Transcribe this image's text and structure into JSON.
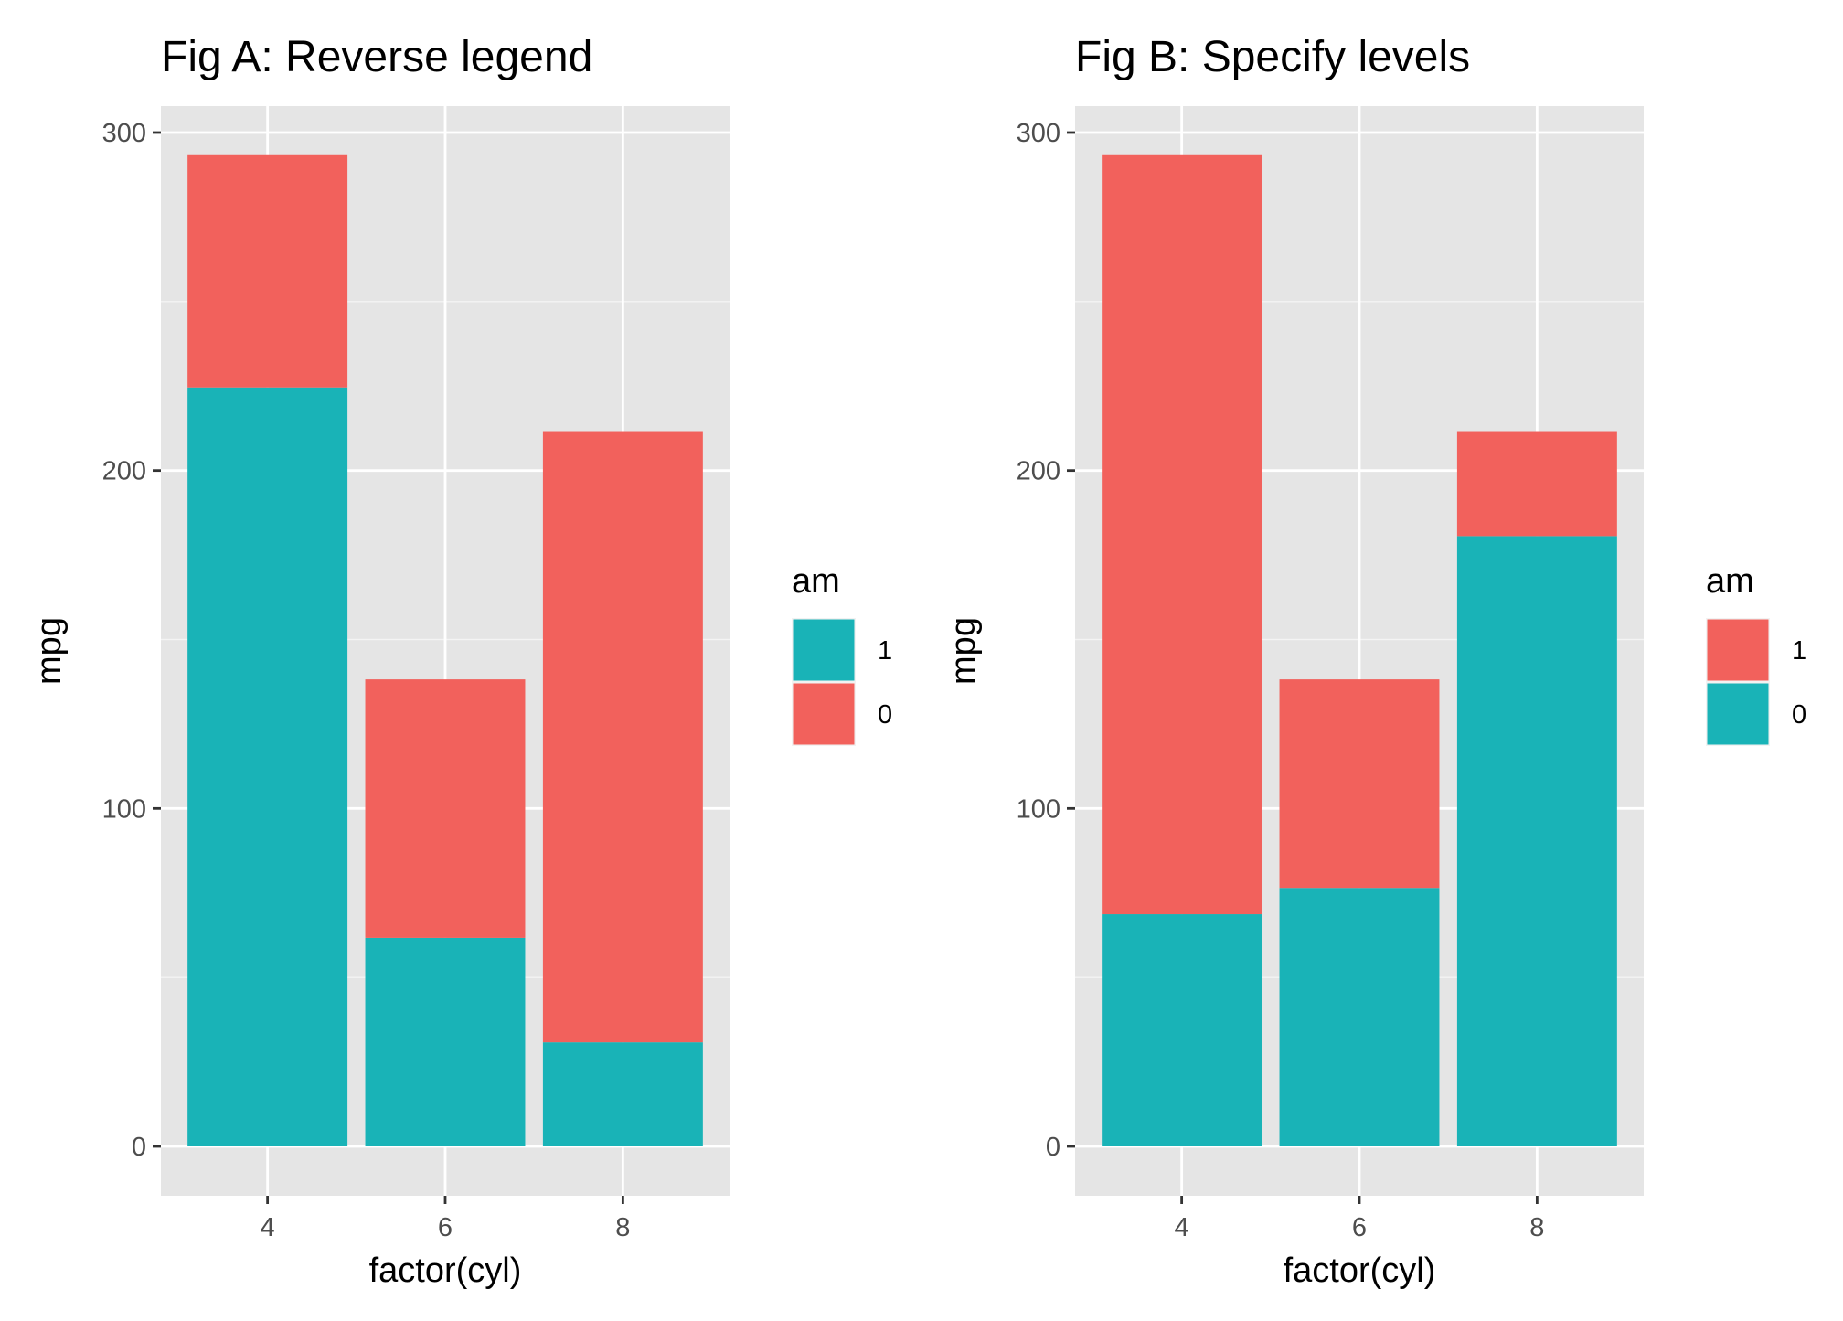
{
  "chart_data": [
    {
      "type": "bar",
      "stacked": true,
      "title": "Fig A: Reverse legend",
      "xlabel": "factor(cyl)",
      "ylabel": "mpg",
      "categories": [
        "4",
        "6",
        "8"
      ],
      "ylim": [
        0,
        300
      ],
      "yticks": [
        "0",
        "100",
        "200",
        "300"
      ],
      "grid": true,
      "legend": {
        "title": "am",
        "placement": "right",
        "items": [
          {
            "label": "1",
            "color": "#19B3B7"
          },
          {
            "label": "0",
            "color": "#F2615C"
          }
        ]
      },
      "series": [
        {
          "name": "1",
          "color": "#19B3B7",
          "values": [
            224.6,
            61.7,
            30.8
          ]
        },
        {
          "name": "0",
          "color": "#F2615C",
          "values": [
            68.7,
            76.5,
            180.6
          ]
        }
      ]
    },
    {
      "type": "bar",
      "stacked": true,
      "title": "Fig B: Specify levels",
      "xlabel": "factor(cyl)",
      "ylabel": "mpg",
      "categories": [
        "4",
        "6",
        "8"
      ],
      "ylim": [
        0,
        300
      ],
      "yticks": [
        "0",
        "100",
        "200",
        "300"
      ],
      "grid": true,
      "legend": {
        "title": "am",
        "placement": "right",
        "items": [
          {
            "label": "1",
            "color": "#F2615C"
          },
          {
            "label": "0",
            "color": "#19B3B7"
          }
        ]
      },
      "series": [
        {
          "name": "0",
          "color": "#19B3B7",
          "values": [
            68.7,
            76.5,
            180.6
          ]
        },
        {
          "name": "1",
          "color": "#F2615C",
          "values": [
            224.6,
            61.7,
            30.8
          ]
        }
      ]
    }
  ]
}
